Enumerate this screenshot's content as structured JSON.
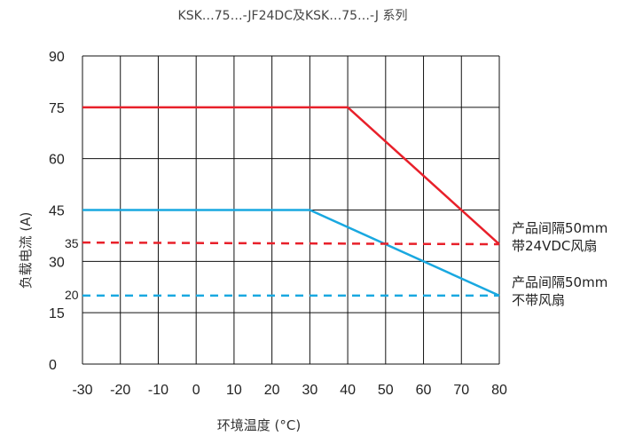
{
  "chart_data": {
    "type": "line",
    "title": "KSK…75…-JF24DC及KSK…75…-J 系列",
    "xlabel": "环境温度 (°C)",
    "ylabel": "负载电流 (A)",
    "xlim": [
      -30,
      80
    ],
    "ylim": [
      0,
      90
    ],
    "x_ticks": [
      -30,
      -20,
      -10,
      0,
      10,
      20,
      30,
      40,
      50,
      60,
      70,
      80
    ],
    "y_ticks": [
      0,
      15,
      30,
      45,
      60,
      75,
      90
    ],
    "y_ticks_minor": [
      20,
      35
    ],
    "grid": true,
    "series": [
      {
        "color": "#e8202a",
        "style": "solid",
        "x": [
          -30,
          40,
          80
        ],
        "y": [
          75,
          75,
          35
        ]
      },
      {
        "color": "#19a8e0",
        "style": "solid",
        "x": [
          -30,
          30,
          80
        ],
        "y": [
          45,
          45,
          20
        ]
      },
      {
        "color": "#e8202a",
        "style": "dashed",
        "x": [
          -30,
          80
        ],
        "y": [
          35.5,
          35
        ]
      },
      {
        "color": "#19a8e0",
        "style": "dashed",
        "x": [
          -30,
          80
        ],
        "y": [
          20,
          20
        ]
      }
    ],
    "annotations": [
      {
        "lines": [
          "产品间隔50mm",
          "带24VDC风扇"
        ]
      },
      {
        "lines": [
          "产品间隔50mm",
          "不带风扇"
        ]
      }
    ]
  }
}
